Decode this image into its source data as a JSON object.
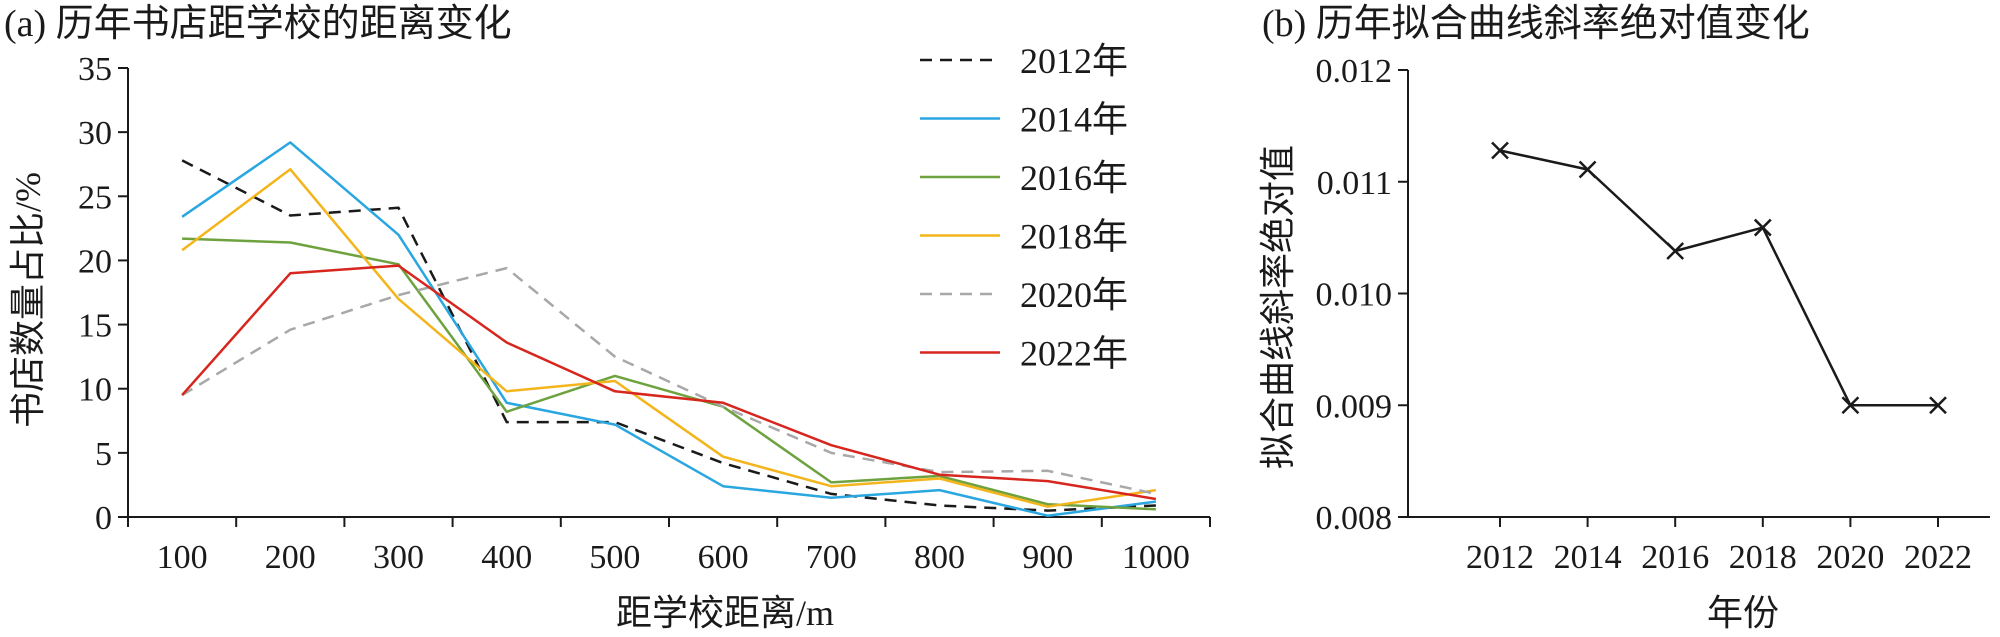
{
  "chart_data": [
    {
      "type": "line",
      "title": "(a) 历年书店距学校的距离变化",
      "xlabel": "距学校距离/m",
      "ylabel": "书店数量占比/%",
      "categories": [
        "100",
        "200",
        "300",
        "400",
        "500",
        "600",
        "700",
        "800",
        "900",
        "1000"
      ],
      "ylim": [
        0,
        35
      ],
      "yticks": [
        "0",
        "5",
        "10",
        "15",
        "20",
        "25",
        "30",
        "35"
      ],
      "legend_position": "top-right",
      "series": [
        {
          "name": "2012年",
          "color": "#1a1a1a",
          "dash": "dashed",
          "values": [
            27.8,
            23.5,
            24.1,
            7.4,
            7.4,
            4.2,
            1.8,
            0.9,
            0.5,
            0.9
          ]
        },
        {
          "name": "2014年",
          "color": "#2aa6e0",
          "dash": "solid",
          "values": [
            23.4,
            29.2,
            22.0,
            8.9,
            7.2,
            2.4,
            1.5,
            2.1,
            0.1,
            1.2
          ]
        },
        {
          "name": "2016年",
          "color": "#6ea23f",
          "dash": "solid",
          "values": [
            21.7,
            21.4,
            19.7,
            8.2,
            11.0,
            8.6,
            2.7,
            3.2,
            1.0,
            0.6
          ]
        },
        {
          "name": "2018年",
          "color": "#f3b51b",
          "dash": "solid",
          "values": [
            20.8,
            27.1,
            17.0,
            9.8,
            10.6,
            4.7,
            2.4,
            3.0,
            0.8,
            2.1
          ]
        },
        {
          "name": "2020年",
          "color": "#a8a8a8",
          "dash": "dashed",
          "values": [
            9.5,
            14.6,
            17.3,
            19.4,
            12.5,
            8.6,
            5.0,
            3.5,
            3.6,
            1.8
          ]
        },
        {
          "name": "2022年",
          "color": "#d7261e",
          "dash": "solid",
          "values": [
            9.5,
            19.0,
            19.6,
            13.6,
            9.8,
            8.9,
            5.6,
            3.3,
            2.8,
            1.4
          ]
        }
      ]
    },
    {
      "type": "line",
      "title": "(b) 历年拟合曲线斜率绝对值变化",
      "xlabel": "年份",
      "ylabel": "拟合曲线斜率绝对值",
      "categories": [
        "2012",
        "2014",
        "2016",
        "2018",
        "2020",
        "2022"
      ],
      "ylim": [
        0.008,
        0.012
      ],
      "yticks": [
        "0.008",
        "0.009",
        "0.010",
        "0.011",
        "0.012"
      ],
      "marker": "x",
      "series": [
        {
          "name": "斜率绝对值",
          "color": "#1a1a1a",
          "values": [
            0.01128,
            0.01111,
            0.01038,
            0.01059,
            0.009,
            0.009
          ]
        }
      ]
    }
  ]
}
